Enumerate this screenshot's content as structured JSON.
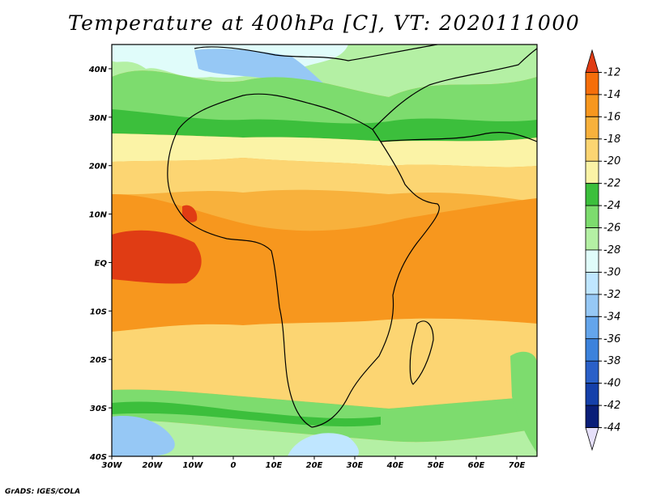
{
  "title": "Temperature at 400hPa [C], VT: 2020111000",
  "footer": "GrADS: IGES/COLA",
  "map": {
    "lon_range": [
      -30,
      75
    ],
    "lat_range": [
      -40,
      45
    ],
    "x_ticks": [
      {
        "value": -30,
        "label": "30W"
      },
      {
        "value": -20,
        "label": "20W"
      },
      {
        "value": -10,
        "label": "10W"
      },
      {
        "value": 0,
        "label": "0"
      },
      {
        "value": 10,
        "label": "10E"
      },
      {
        "value": 20,
        "label": "20E"
      },
      {
        "value": 30,
        "label": "30E"
      },
      {
        "value": 40,
        "label": "40E"
      },
      {
        "value": 50,
        "label": "50E"
      },
      {
        "value": 60,
        "label": "60E"
      },
      {
        "value": 70,
        "label": "70E"
      }
    ],
    "y_ticks": [
      {
        "value": 40,
        "label": "40N"
      },
      {
        "value": 30,
        "label": "30N"
      },
      {
        "value": 20,
        "label": "20N"
      },
      {
        "value": 10,
        "label": "10N"
      },
      {
        "value": 0,
        "label": "EQ"
      },
      {
        "value": -10,
        "label": "10S"
      },
      {
        "value": -20,
        "label": "20S"
      },
      {
        "value": -30,
        "label": "30S"
      },
      {
        "value": -40,
        "label": "40S"
      }
    ]
  },
  "colorbar": {
    "levels": [
      "-12",
      "-14",
      "-16",
      "-18",
      "-20",
      "-22",
      "-24",
      "-26",
      "-28",
      "-30",
      "-32",
      "-34",
      "-36",
      "-38",
      "-40",
      "-42",
      "-44"
    ],
    "colors": [
      "#e03c14",
      "#f56e0a",
      "#f7971e",
      "#f8b13c",
      "#fcd572",
      "#fbf3a6",
      "#3cbf3c",
      "#7ddc6e",
      "#b4f0a4",
      "#e0fcfa",
      "#bfe6ff",
      "#96c8f5",
      "#64a5eb",
      "#3c82dc",
      "#2a60c8",
      "#1540aa",
      "#0a1e78",
      "#e6e0fa"
    ]
  }
}
